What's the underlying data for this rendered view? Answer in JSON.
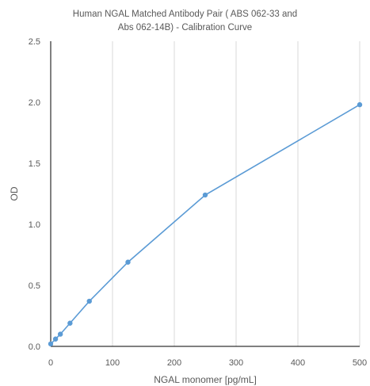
{
  "chart_data": {
    "type": "line",
    "title_lines": [
      "Human NGAL Matched Antibody Pair ( ABS 062-33 and",
      "Abs 062-14B) - Calibration Curve"
    ],
    "xlabel": "NGAL monomer [pg/mL]",
    "ylabel": "OD",
    "xlim": [
      0,
      500
    ],
    "ylim": [
      0,
      2.5
    ],
    "x_ticks": [
      0,
      100,
      200,
      300,
      400,
      500
    ],
    "y_ticks": [
      "0.0",
      "0.5",
      "1.0",
      "1.5",
      "2.0",
      "2.5"
    ],
    "grid": "vertical",
    "legend": "none",
    "series": [
      {
        "x": [
          0,
          7.8,
          15.6,
          31.25,
          62.5,
          125,
          250,
          500
        ],
        "y": [
          0.02,
          0.06,
          0.1,
          0.19,
          0.37,
          0.69,
          1.24,
          1.98
        ]
      }
    ],
    "colors": {
      "series": "#5B9BD5",
      "grid": "#D9D9D9",
      "axis": "#000000"
    }
  }
}
